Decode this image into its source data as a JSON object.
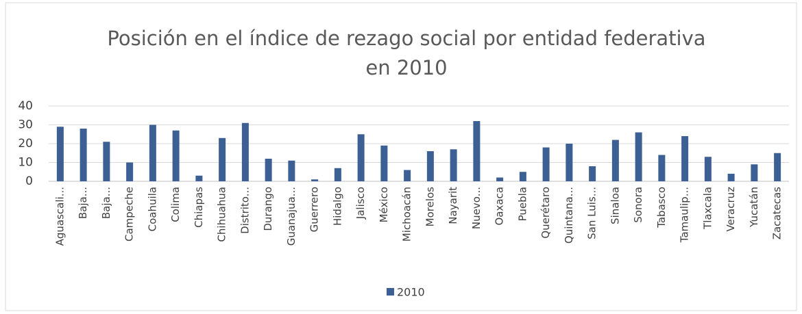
{
  "chart_data": {
    "type": "bar",
    "title": [
      "Posición en el índice de rezago social por entidad federativa",
      "en 2010"
    ],
    "categories": [
      "Aguascali...",
      "Baja...",
      "Baja...",
      "Campeche",
      "Coahuila",
      "Colima",
      "Chiapas",
      "Chihuahua",
      "Distrito...",
      "Durango",
      "Guanajua...",
      "Guerrero",
      "Hidalgo",
      "Jalisco",
      "México",
      "Michoacán",
      "Morelos",
      "Nayarit",
      "Nuevo...",
      "Oaxaca",
      "Puebla",
      "Querétaro",
      "Quintana...",
      "San Luis...",
      "Sinaloa",
      "Sonora",
      "Tabasco",
      "Tamaulip...",
      "Tlaxcala",
      "Veracruz",
      "Yucatán",
      "Zacatecas"
    ],
    "series": [
      {
        "name": "2010",
        "color": "#3c5f94",
        "values": [
          29,
          28,
          21,
          10,
          30,
          27,
          3,
          23,
          31,
          12,
          11,
          1,
          7,
          25,
          19,
          6,
          16,
          17,
          32,
          2,
          5,
          18,
          20,
          8,
          22,
          26,
          14,
          24,
          13,
          4,
          9,
          15
        ]
      }
    ],
    "ylim": [
      0,
      40
    ],
    "yticks": [
      0,
      10,
      20,
      30,
      40
    ],
    "grid": true,
    "legend": "bottom"
  }
}
